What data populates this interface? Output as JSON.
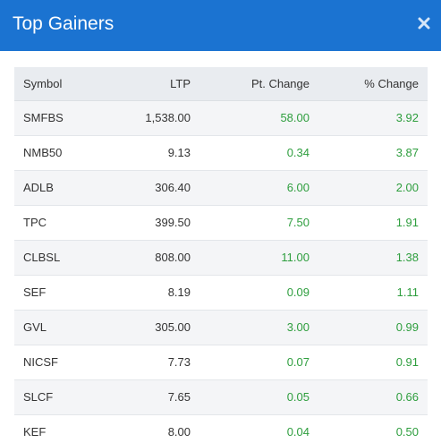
{
  "modal": {
    "title": "Top Gainers",
    "close_icon": "close-icon",
    "accent_color": "#1b73d1",
    "positive_color": "#2e9e3e"
  },
  "table": {
    "columns": [
      "Symbol",
      "LTP",
      "Pt. Change",
      "% Change"
    ],
    "rows": [
      {
        "symbol": "SMFBS",
        "ltp": "1,538.00",
        "pt_change": "58.00",
        "pct_change": "3.92"
      },
      {
        "symbol": "NMB50",
        "ltp": "9.13",
        "pt_change": "0.34",
        "pct_change": "3.87"
      },
      {
        "symbol": "ADLB",
        "ltp": "306.40",
        "pt_change": "6.00",
        "pct_change": "2.00"
      },
      {
        "symbol": "TPC",
        "ltp": "399.50",
        "pt_change": "7.50",
        "pct_change": "1.91"
      },
      {
        "symbol": "CLBSL",
        "ltp": "808.00",
        "pt_change": "11.00",
        "pct_change": "1.38"
      },
      {
        "symbol": "SEF",
        "ltp": "8.19",
        "pt_change": "0.09",
        "pct_change": "1.11"
      },
      {
        "symbol": "GVL",
        "ltp": "305.00",
        "pt_change": "3.00",
        "pct_change": "0.99"
      },
      {
        "symbol": "NICSF",
        "ltp": "7.73",
        "pt_change": "0.07",
        "pct_change": "0.91"
      },
      {
        "symbol": "SLCF",
        "ltp": "7.65",
        "pt_change": "0.05",
        "pct_change": "0.66"
      },
      {
        "symbol": "KEF",
        "ltp": "8.00",
        "pt_change": "0.04",
        "pct_change": "0.50"
      }
    ]
  }
}
